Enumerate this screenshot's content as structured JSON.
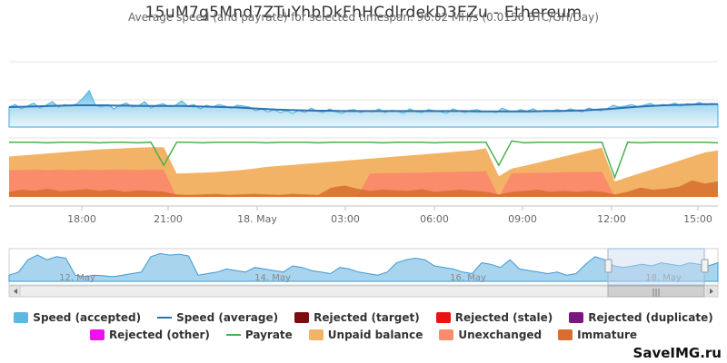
{
  "title": "15uM7g5Mnd7ZTuYhbDkFhHCdlrdekD3EZu - Ethereum",
  "subtitle": "Average speed (and payrate) for selected timespan: 96.02 MH/s (0.0156 BTC/GH/Day)",
  "watermark": "SaveIMG.ru",
  "chart_data": {
    "type": "area",
    "x_ticks": [
      "18:00",
      "21:00",
      "18. May",
      "03:00",
      "06:00",
      "09:00",
      "12:00",
      "15:00"
    ],
    "navigator_ticks": [
      "12. May",
      "14. May",
      "16. May",
      "18. May"
    ],
    "legend": [
      {
        "name": "Speed (accepted)",
        "color": "#5bb8e0",
        "kind": "box"
      },
      {
        "name": "Speed (average)",
        "color": "#2f72b3",
        "kind": "line"
      },
      {
        "name": "Rejected (target)",
        "color": "#7a0e0e",
        "kind": "box"
      },
      {
        "name": "Rejected (stale)",
        "color": "#ee1111",
        "kind": "box"
      },
      {
        "name": "Rejected (duplicate)",
        "color": "#7a1680",
        "kind": "box"
      },
      {
        "name": "Rejected (other)",
        "color": "#ee11ee",
        "kind": "box"
      },
      {
        "name": "Payrate",
        "color": "#4caf50",
        "kind": "line"
      },
      {
        "name": "Unpaid balance",
        "color": "#f3b366",
        "kind": "box"
      },
      {
        "name": "Unexchanged",
        "color": "#fa8c6c",
        "kind": "box"
      },
      {
        "name": "Immature",
        "color": "#d76d2e",
        "kind": "box"
      }
    ],
    "speed_accepted": [
      0.55,
      0.62,
      0.5,
      0.58,
      0.66,
      0.52,
      0.6,
      0.7,
      0.55,
      0.62,
      0.58,
      0.64,
      0.8,
      1.0,
      0.6,
      0.55,
      0.62,
      0.5,
      0.6,
      0.66,
      0.55,
      0.58,
      0.7,
      0.52,
      0.6,
      0.64,
      0.56,
      0.6,
      0.72,
      0.58,
      0.62,
      0.5,
      0.6,
      0.55,
      0.62,
      0.58,
      0.52,
      0.6,
      0.58,
      0.55,
      0.45,
      0.5,
      0.42,
      0.48,
      0.4,
      0.45,
      0.38,
      0.46,
      0.4,
      0.52,
      0.44,
      0.4,
      0.5,
      0.42,
      0.38,
      0.46,
      0.48,
      0.4,
      0.45,
      0.42,
      0.5,
      0.4,
      0.46,
      0.44,
      0.38,
      0.5,
      0.42,
      0.4,
      0.48,
      0.45,
      0.42,
      0.38,
      0.5,
      0.44,
      0.4,
      0.46,
      0.48,
      0.42,
      0.44,
      0.4,
      0.52,
      0.45,
      0.42,
      0.48,
      0.44,
      0.5,
      0.42,
      0.46,
      0.45,
      0.48,
      0.44,
      0.5,
      0.46,
      0.42,
      0.52,
      0.48,
      0.45,
      0.5,
      0.6,
      0.55,
      0.58,
      0.62,
      0.56,
      0.6,
      0.65,
      0.58,
      0.62,
      0.6,
      0.66,
      0.58,
      0.64,
      0.62,
      0.68,
      0.6,
      0.65,
      0.62
    ],
    "speed_average": [
      0.55,
      0.56,
      0.57,
      0.58,
      0.59,
      0.6,
      0.6,
      0.6,
      0.59,
      0.59,
      0.58,
      0.58,
      0.58,
      0.58,
      0.57,
      0.56,
      0.55,
      0.54,
      0.52,
      0.5,
      0.48,
      0.47,
      0.46,
      0.45,
      0.45,
      0.44,
      0.44,
      0.44,
      0.44,
      0.44,
      0.44,
      0.44,
      0.44,
      0.44,
      0.44,
      0.43,
      0.43,
      0.43,
      0.43,
      0.43,
      0.44,
      0.44,
      0.45,
      0.46,
      0.48,
      0.5,
      0.53,
      0.56,
      0.58,
      0.6,
      0.61,
      0.62,
      0.63,
      0.63
    ],
    "payrate": [
      0.93,
      0.93,
      0.93,
      0.92,
      0.93,
      0.93,
      0.93,
      0.92,
      0.93,
      0.93,
      0.92,
      0.93,
      0.55,
      0.93,
      0.93,
      0.92,
      0.93,
      0.93,
      0.93,
      0.93,
      0.92,
      0.93,
      0.93,
      0.93,
      0.92,
      0.93,
      0.93,
      0.93,
      0.93,
      0.92,
      0.93,
      0.93,
      0.93,
      0.92,
      0.93,
      0.93,
      0.93,
      0.93,
      0.55,
      0.95,
      0.92,
      0.93,
      0.93,
      0.93,
      0.93,
      0.93,
      0.93,
      0.35,
      0.93,
      0.92,
      0.93,
      0.93,
      0.93,
      0.93,
      0.93,
      0.92
    ],
    "unpaid_balance": [
      0.78,
      0.8,
      0.82,
      0.84,
      0.86,
      0.88,
      0.9,
      0.92,
      0.93,
      0.94,
      0.95,
      0.96,
      0.96,
      0.45,
      0.46,
      0.47,
      0.48,
      0.5,
      0.52,
      0.55,
      0.58,
      0.6,
      0.62,
      0.64,
      0.66,
      0.68,
      0.7,
      0.72,
      0.74,
      0.76,
      0.78,
      0.8,
      0.82,
      0.84,
      0.86,
      0.88,
      0.9,
      0.94,
      0.4,
      0.55,
      0.6,
      0.66,
      0.72,
      0.78,
      0.84,
      0.9,
      0.95,
      0.3,
      0.38,
      0.46,
      0.54,
      0.62,
      0.7,
      0.78,
      0.86,
      0.9
    ],
    "unexchanged": [
      0.52,
      0.52,
      0.53,
      0.52,
      0.53,
      0.52,
      0.53,
      0.52,
      0.53,
      0.53,
      0.52,
      0.53,
      0.53,
      0.0,
      0.0,
      0.0,
      0.0,
      0.0,
      0.0,
      0.0,
      0.0,
      0.0,
      0.0,
      0.0,
      0.0,
      0.0,
      0.0,
      0.0,
      0.45,
      0.46,
      0.46,
      0.47,
      0.47,
      0.48,
      0.48,
      0.49,
      0.49,
      0.5,
      0.0,
      0.46,
      0.46,
      0.47,
      0.47,
      0.48,
      0.48,
      0.48,
      0.49,
      0.0,
      0.0,
      0.0,
      0.0,
      0.0,
      0.0,
      0.0,
      0.0,
      0.0
    ],
    "immature": [
      0.1,
      0.14,
      0.12,
      0.16,
      0.11,
      0.13,
      0.15,
      0.12,
      0.14,
      0.1,
      0.13,
      0.12,
      0.1,
      0.05,
      0.04,
      0.05,
      0.06,
      0.04,
      0.05,
      0.06,
      0.05,
      0.04,
      0.06,
      0.05,
      0.04,
      0.18,
      0.22,
      0.16,
      0.12,
      0.14,
      0.13,
      0.12,
      0.15,
      0.1,
      0.12,
      0.14,
      0.12,
      0.1,
      0.05,
      0.1,
      0.12,
      0.14,
      0.1,
      0.12,
      0.1,
      0.12,
      0.1,
      0.05,
      0.1,
      0.18,
      0.14,
      0.16,
      0.2,
      0.32,
      0.26,
      0.3
    ],
    "navigator_speed": [
      0.2,
      0.3,
      0.7,
      0.85,
      0.7,
      0.8,
      0.75,
      0.2,
      0.15,
      0.2,
      0.18,
      0.15,
      0.2,
      0.25,
      0.3,
      0.8,
      0.9,
      0.85,
      0.88,
      0.82,
      0.2,
      0.25,
      0.3,
      0.4,
      0.35,
      0.3,
      0.45,
      0.4,
      0.35,
      0.3,
      0.5,
      0.45,
      0.35,
      0.3,
      0.25,
      0.45,
      0.4,
      0.3,
      0.25,
      0.2,
      0.3,
      0.6,
      0.7,
      0.75,
      0.7,
      0.5,
      0.45,
      0.4,
      0.3,
      0.25,
      0.6,
      0.55,
      0.45,
      0.7,
      0.4,
      0.35,
      0.3,
      0.25,
      0.3,
      0.2,
      0.25,
      0.55,
      0.8,
      0.7,
      0.5,
      0.45,
      0.5,
      0.55,
      0.5,
      0.6,
      0.55,
      0.5,
      0.6,
      0.55,
      0.5,
      0.6
    ]
  }
}
